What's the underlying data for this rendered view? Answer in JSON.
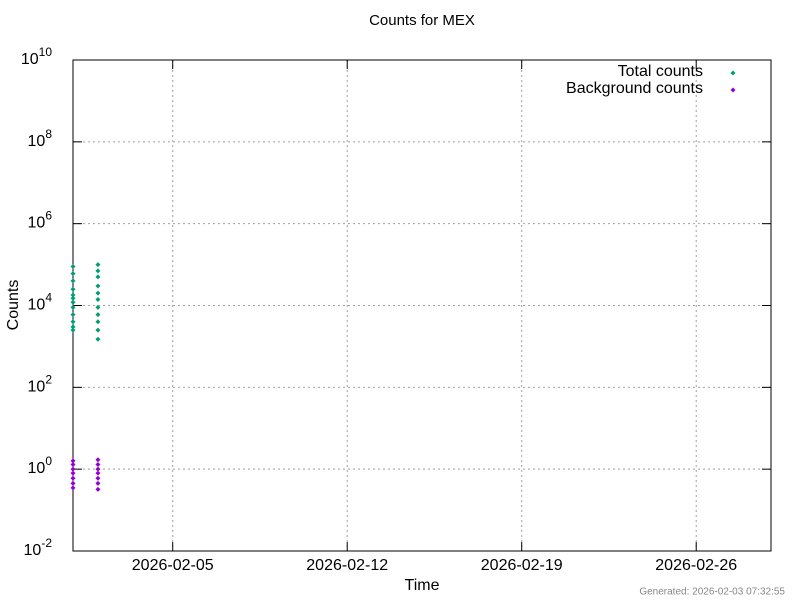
{
  "chart_data": {
    "type": "scatter",
    "title": "Counts for MEX",
    "xlabel": "Time",
    "ylabel": "Counts",
    "footer": "Generated: 2026-02-03 07:32:55",
    "xlim": [
      "2026-02-01",
      "2026-03-01"
    ],
    "xticks": [
      "2026-02-05",
      "2026-02-12",
      "2026-02-19",
      "2026-02-26"
    ],
    "ylim": [
      0.01,
      10000000000
    ],
    "yscale": "log",
    "yticks": [
      {
        "value": 0.01,
        "label": "10",
        "sup": "-2"
      },
      {
        "value": 1,
        "label": "10",
        "sup": "0"
      },
      {
        "value": 100,
        "label": "10",
        "sup": "2"
      },
      {
        "value": 10000,
        "label": "10",
        "sup": "4"
      },
      {
        "value": 1000000,
        "label": "10",
        "sup": "6"
      },
      {
        "value": 100000000,
        "label": "10",
        "sup": "8"
      },
      {
        "value": 10000000000,
        "label": "10",
        "sup": "10"
      }
    ],
    "grid": true,
    "legend": "upper right",
    "series": [
      {
        "name": "Total counts",
        "color": "#009e73",
        "x": [
          "2026-02-01",
          "2026-02-01",
          "2026-02-01",
          "2026-02-01",
          "2026-02-01",
          "2026-02-01",
          "2026-02-01",
          "2026-02-01",
          "2026-02-01",
          "2026-02-01",
          "2026-02-01",
          "2026-02-01",
          "2026-02-02",
          "2026-02-02",
          "2026-02-02",
          "2026-02-02",
          "2026-02-02",
          "2026-02-02",
          "2026-02-02",
          "2026-02-02",
          "2026-02-02",
          "2026-02-02",
          "2026-02-02"
        ],
        "values": [
          2500,
          3000,
          4000,
          6000,
          9000,
          12000,
          15000,
          18000,
          25000,
          40000,
          60000,
          90000,
          1500,
          2500,
          4000,
          6000,
          9000,
          14000,
          20000,
          30000,
          50000,
          70000,
          100000
        ]
      },
      {
        "name": "Background counts",
        "color": "#9400d3",
        "x": [
          "2026-02-01",
          "2026-02-01",
          "2026-02-01",
          "2026-02-01",
          "2026-02-01",
          "2026-02-01",
          "2026-02-01",
          "2026-02-02",
          "2026-02-02",
          "2026-02-02",
          "2026-02-02",
          "2026-02-02",
          "2026-02-02",
          "2026-02-02"
        ],
        "values": [
          0.35,
          0.45,
          0.6,
          0.8,
          1.0,
          1.3,
          1.6,
          0.32,
          0.45,
          0.6,
          0.8,
          1.0,
          1.3,
          1.7
        ]
      }
    ]
  }
}
